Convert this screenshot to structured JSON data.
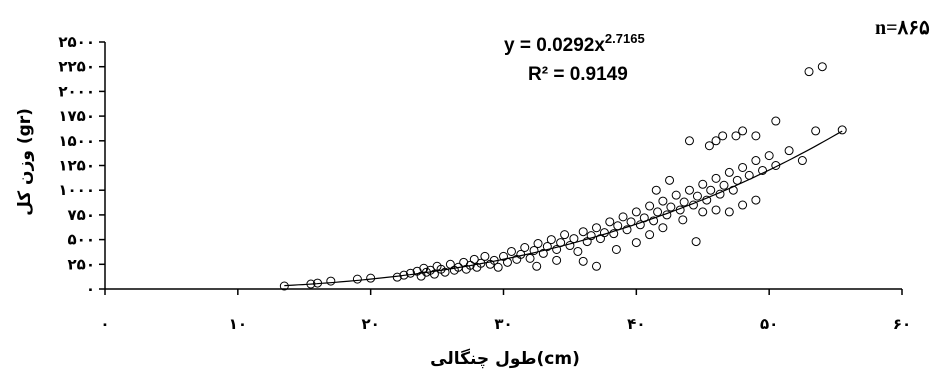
{
  "chart_data": {
    "type": "scatter",
    "xlabel": "طول چنگالی(cm)",
    "ylabel": "وزن کل (gr)",
    "xlim": [
      0,
      60
    ],
    "ylim": [
      0,
      2500
    ],
    "x_ticks": [
      0,
      10,
      20,
      30,
      40,
      50,
      60
    ],
    "y_ticks": [
      0,
      250,
      500,
      750,
      1000,
      1250,
      1500,
      1750,
      2000,
      2250,
      2500
    ],
    "x_tick_labels": [
      "۰",
      "۱۰",
      "۲۰",
      "۳۰",
      "۴۰",
      "۵۰",
      "۶۰"
    ],
    "y_tick_labels": [
      "۰",
      "۲۵۰",
      "۵۰۰",
      "۷۵۰",
      "۱۰۰۰",
      "۱۲۵۰",
      "۱۵۰۰",
      "۱۷۵۰",
      "۲۰۰۰",
      "۲۲۵۰",
      "۲۵۰۰"
    ],
    "equation": "y = 0.0292x",
    "equation_exponent": "2.7165",
    "r_squared": "R² = 0.9149",
    "n_label": "n=۸۶۵",
    "grid": false,
    "trendline": {
      "type": "power",
      "a": 0.0292,
      "b": 2.7165,
      "x_range": [
        13.5,
        55.5
      ]
    },
    "series": [
      {
        "points": [
          [
            13.5,
            30
          ],
          [
            15.5,
            50
          ],
          [
            16.0,
            60
          ],
          [
            17.0,
            80
          ],
          [
            19.0,
            100
          ],
          [
            20.0,
            110
          ],
          [
            22.0,
            120
          ],
          [
            22.5,
            140
          ],
          [
            23.0,
            160
          ],
          [
            23.5,
            180
          ],
          [
            23.8,
            130
          ],
          [
            24.0,
            210
          ],
          [
            24.2,
            170
          ],
          [
            24.5,
            190
          ],
          [
            24.8,
            150
          ],
          [
            25.0,
            230
          ],
          [
            25.3,
            200
          ],
          [
            25.6,
            170
          ],
          [
            26.0,
            250
          ],
          [
            26.3,
            190
          ],
          [
            26.6,
            220
          ],
          [
            27.0,
            270
          ],
          [
            27.2,
            200
          ],
          [
            27.5,
            240
          ],
          [
            27.8,
            300
          ],
          [
            28.0,
            220
          ],
          [
            28.3,
            260
          ],
          [
            28.6,
            330
          ],
          [
            29.0,
            250
          ],
          [
            29.3,
            290
          ],
          [
            29.6,
            220
          ],
          [
            30.0,
            330
          ],
          [
            30.3,
            270
          ],
          [
            30.6,
            380
          ],
          [
            31.0,
            300
          ],
          [
            31.3,
            350
          ],
          [
            31.6,
            420
          ],
          [
            32.0,
            310
          ],
          [
            32.3,
            390
          ],
          [
            32.6,
            460
          ],
          [
            33.0,
            360
          ],
          [
            33.3,
            430
          ],
          [
            33.6,
            500
          ],
          [
            34.0,
            400
          ],
          [
            34.3,
            470
          ],
          [
            34.6,
            550
          ],
          [
            35.0,
            440
          ],
          [
            35.3,
            510
          ],
          [
            35.6,
            380
          ],
          [
            36.0,
            580
          ],
          [
            36.3,
            480
          ],
          [
            36.6,
            540
          ],
          [
            37.0,
            620
          ],
          [
            37.3,
            510
          ],
          [
            37.6,
            570
          ],
          [
            38.0,
            680
          ],
          [
            38.3,
            560
          ],
          [
            38.6,
            640
          ],
          [
            39.0,
            730
          ],
          [
            39.3,
            600
          ],
          [
            39.6,
            680
          ],
          [
            40.0,
            780
          ],
          [
            40.3,
            650
          ],
          [
            40.6,
            720
          ],
          [
            41.0,
            840
          ],
          [
            41.3,
            690
          ],
          [
            41.6,
            780
          ],
          [
            42.0,
            890
          ],
          [
            42.3,
            750
          ],
          [
            42.6,
            830
          ],
          [
            43.0,
            950
          ],
          [
            43.3,
            800
          ],
          [
            43.6,
            880
          ],
          [
            44.0,
            1000
          ],
          [
            44.3,
            850
          ],
          [
            44.6,
            940
          ],
          [
            45.0,
            1060
          ],
          [
            45.3,
            900
          ],
          [
            45.6,
            1000
          ],
          [
            46.0,
            1120
          ],
          [
            46.3,
            960
          ],
          [
            46.6,
            1050
          ],
          [
            47.0,
            1180
          ],
          [
            47.3,
            1000
          ],
          [
            47.6,
            1100
          ],
          [
            48.0,
            1230
          ],
          [
            48.5,
            1150
          ],
          [
            49.0,
            1300
          ],
          [
            49.5,
            1200
          ],
          [
            50.0,
            1350
          ],
          [
            50.5,
            1250
          ],
          [
            51.5,
            1400
          ],
          [
            52.5,
            1300
          ],
          [
            32.5,
            230
          ],
          [
            34.0,
            290
          ],
          [
            36.0,
            280
          ],
          [
            37.0,
            230
          ],
          [
            38.5,
            400
          ],
          [
            40.0,
            470
          ],
          [
            41.0,
            550
          ],
          [
            42.0,
            620
          ],
          [
            43.5,
            700
          ],
          [
            44.5,
            480
          ],
          [
            45.0,
            780
          ],
          [
            46.0,
            800
          ],
          [
            47.0,
            780
          ],
          [
            48.0,
            850
          ],
          [
            49.0,
            900
          ],
          [
            41.5,
            1000
          ],
          [
            42.5,
            1100
          ],
          [
            44.0,
            1500
          ],
          [
            45.5,
            1450
          ],
          [
            46.0,
            1500
          ],
          [
            46.5,
            1550
          ],
          [
            47.5,
            1550
          ],
          [
            48.0,
            1600
          ],
          [
            49.0,
            1550
          ],
          [
            50.5,
            1700
          ],
          [
            53.0,
            2200
          ],
          [
            54.0,
            2250
          ],
          [
            53.5,
            1600
          ],
          [
            55.5,
            1610
          ]
        ]
      }
    ]
  }
}
